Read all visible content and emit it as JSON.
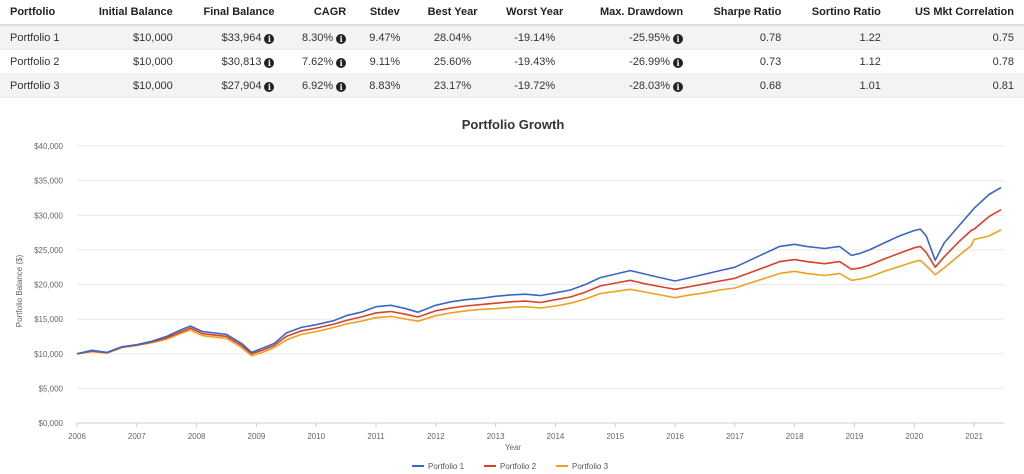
{
  "table": {
    "headers": [
      "Portfolio",
      "Initial Balance",
      "Final Balance",
      "CAGR",
      "Stdev",
      "Best Year",
      "Worst Year",
      "Max. Drawdown",
      "Sharpe Ratio",
      "Sortino Ratio",
      "US Mkt Correlation"
    ],
    "rows": [
      {
        "portfolio": "Portfolio 1",
        "initial": "$10,000",
        "final": "$33,964",
        "cagr": "8.30%",
        "stdev": "9.47%",
        "best": "28.04%",
        "worst": "-19.14%",
        "drawdown": "-25.95%",
        "sharpe": "0.78",
        "sortino": "1.22",
        "corr": "0.75"
      },
      {
        "portfolio": "Portfolio 2",
        "initial": "$10,000",
        "final": "$30,813",
        "cagr": "7.62%",
        "stdev": "9.11%",
        "best": "25.60%",
        "worst": "-19.43%",
        "drawdown": "-26.99%",
        "sharpe": "0.73",
        "sortino": "1.12",
        "corr": "0.78"
      },
      {
        "portfolio": "Portfolio 3",
        "initial": "$10,000",
        "final": "$27,904",
        "cagr": "6.92%",
        "stdev": "8.83%",
        "best": "23.17%",
        "worst": "-19.72%",
        "drawdown": "-28.03%",
        "sharpe": "0.68",
        "sortino": "1.01",
        "corr": "0.81"
      }
    ],
    "info_icon": "info-circle-icon"
  },
  "chart_data": {
    "type": "line",
    "title": "Portfolio Growth",
    "xlabel": "Year",
    "ylabel": "Portfolio Balance ($)",
    "xlim": [
      2006.0,
      2021.5
    ],
    "ylim": [
      0,
      40000
    ],
    "x_ticks": [
      "2006",
      "2007",
      "2008",
      "2009",
      "2010",
      "2011",
      "2012",
      "2013",
      "2014",
      "2015",
      "2016",
      "2017",
      "2018",
      "2019",
      "2020",
      "2021"
    ],
    "y_ticks": [
      "$0,000",
      "$5,000",
      "$10,000",
      "$15,000",
      "$20,000",
      "$25,000",
      "$30,000",
      "$35,000",
      "$40,000"
    ],
    "grid": true,
    "legend_position": "bottom-center",
    "series": [
      {
        "name": "Portfolio 1",
        "color": "#3b66c4",
        "x": [
          2006.0,
          2006.25,
          2006.5,
          2006.75,
          2007.0,
          2007.25,
          2007.5,
          2007.75,
          2007.9,
          2008.1,
          2008.3,
          2008.5,
          2008.75,
          2008.92,
          2009.1,
          2009.3,
          2009.5,
          2009.75,
          2010.0,
          2010.3,
          2010.5,
          2010.75,
          2011.0,
          2011.25,
          2011.5,
          2011.7,
          2012.0,
          2012.25,
          2012.5,
          2012.75,
          2013.0,
          2013.25,
          2013.5,
          2013.75,
          2014.0,
          2014.25,
          2014.5,
          2014.75,
          2015.0,
          2015.25,
          2015.5,
          2015.75,
          2016.0,
          2016.25,
          2016.5,
          2016.75,
          2017.0,
          2017.25,
          2017.5,
          2017.75,
          2018.0,
          2018.2,
          2018.5,
          2018.75,
          2018.95,
          2019.1,
          2019.25,
          2019.5,
          2019.75,
          2020.0,
          2020.1,
          2020.2,
          2020.35,
          2020.5,
          2020.75,
          2020.95,
          2021.0,
          2021.25,
          2021.45
        ],
        "y": [
          10000,
          10500,
          10200,
          11000,
          11300,
          11800,
          12500,
          13500,
          14000,
          13200,
          13000,
          12800,
          11500,
          10200,
          10800,
          11500,
          13000,
          13800,
          14200,
          14800,
          15500,
          16000,
          16800,
          17000,
          16500,
          16000,
          17000,
          17500,
          17800,
          18000,
          18300,
          18500,
          18600,
          18400,
          18800,
          19200,
          20000,
          21000,
          21500,
          22000,
          21500,
          21000,
          20500,
          21000,
          21500,
          22000,
          22500,
          23500,
          24500,
          25500,
          25800,
          25500,
          25200,
          25500,
          24200,
          24500,
          25000,
          26000,
          27000,
          27800,
          28000,
          27000,
          23500,
          26000,
          28500,
          30500,
          31000,
          33000,
          34000
        ]
      },
      {
        "name": "Portfolio 2",
        "color": "#d9412b",
        "x": [
          2006.0,
          2006.25,
          2006.5,
          2006.75,
          2007.0,
          2007.25,
          2007.5,
          2007.75,
          2007.9,
          2008.1,
          2008.3,
          2008.5,
          2008.75,
          2008.92,
          2009.1,
          2009.3,
          2009.5,
          2009.75,
          2010.0,
          2010.3,
          2010.5,
          2010.75,
          2011.0,
          2011.25,
          2011.5,
          2011.7,
          2012.0,
          2012.25,
          2012.5,
          2012.75,
          2013.0,
          2013.25,
          2013.5,
          2013.75,
          2014.0,
          2014.25,
          2014.5,
          2014.75,
          2015.0,
          2015.25,
          2015.5,
          2015.75,
          2016.0,
          2016.25,
          2016.5,
          2016.75,
          2017.0,
          2017.25,
          2017.5,
          2017.75,
          2018.0,
          2018.2,
          2018.5,
          2018.75,
          2018.95,
          2019.1,
          2019.25,
          2019.5,
          2019.75,
          2020.0,
          2020.1,
          2020.2,
          2020.35,
          2020.5,
          2020.75,
          2020.95,
          2021.0,
          2021.25,
          2021.45
        ],
        "y": [
          10000,
          10400,
          10150,
          10950,
          11250,
          11700,
          12300,
          13200,
          13700,
          12900,
          12700,
          12500,
          11200,
          10000,
          10500,
          11200,
          12500,
          13300,
          13700,
          14300,
          14800,
          15300,
          15900,
          16100,
          15700,
          15300,
          16200,
          16600,
          16900,
          17100,
          17300,
          17500,
          17600,
          17400,
          17800,
          18200,
          18900,
          19800,
          20200,
          20600,
          20100,
          19700,
          19300,
          19700,
          20100,
          20500,
          20900,
          21700,
          22500,
          23300,
          23600,
          23300,
          23000,
          23300,
          22200,
          22400,
          22800,
          23700,
          24500,
          25300,
          25500,
          24600,
          22500,
          24000,
          26200,
          27800,
          28000,
          29800,
          30800
        ]
      },
      {
        "name": "Portfolio 3",
        "color": "#f0a020",
        "x": [
          2006.0,
          2006.25,
          2006.5,
          2006.75,
          2007.0,
          2007.25,
          2007.5,
          2007.75,
          2007.9,
          2008.1,
          2008.3,
          2008.5,
          2008.75,
          2008.92,
          2009.1,
          2009.3,
          2009.5,
          2009.75,
          2010.0,
          2010.3,
          2010.5,
          2010.75,
          2011.0,
          2011.25,
          2011.5,
          2011.7,
          2012.0,
          2012.25,
          2012.5,
          2012.75,
          2013.0,
          2013.25,
          2013.5,
          2013.75,
          2014.0,
          2014.25,
          2014.5,
          2014.75,
          2015.0,
          2015.25,
          2015.5,
          2015.75,
          2016.0,
          2016.25,
          2016.5,
          2016.75,
          2017.0,
          2017.25,
          2017.5,
          2017.75,
          2018.0,
          2018.2,
          2018.5,
          2018.75,
          2018.95,
          2019.1,
          2019.25,
          2019.5,
          2019.75,
          2020.0,
          2020.1,
          2020.2,
          2020.35,
          2020.5,
          2020.75,
          2020.95,
          2021.0,
          2021.25,
          2021.45
        ],
        "y": [
          10000,
          10300,
          10100,
          10900,
          11200,
          11600,
          12100,
          13000,
          13400,
          12600,
          12400,
          12200,
          10900,
          9700,
          10200,
          10900,
          12000,
          12800,
          13200,
          13800,
          14300,
          14700,
          15200,
          15400,
          15000,
          14700,
          15500,
          15900,
          16200,
          16400,
          16500,
          16700,
          16800,
          16600,
          16900,
          17300,
          17900,
          18700,
          19000,
          19300,
          18900,
          18500,
          18100,
          18500,
          18800,
          19200,
          19500,
          20200,
          20900,
          21600,
          21900,
          21600,
          21300,
          21600,
          20600,
          20800,
          21100,
          21900,
          22600,
          23300,
          23500,
          22700,
          21400,
          22400,
          24200,
          25600,
          26500,
          27000,
          27900
        ]
      }
    ]
  }
}
